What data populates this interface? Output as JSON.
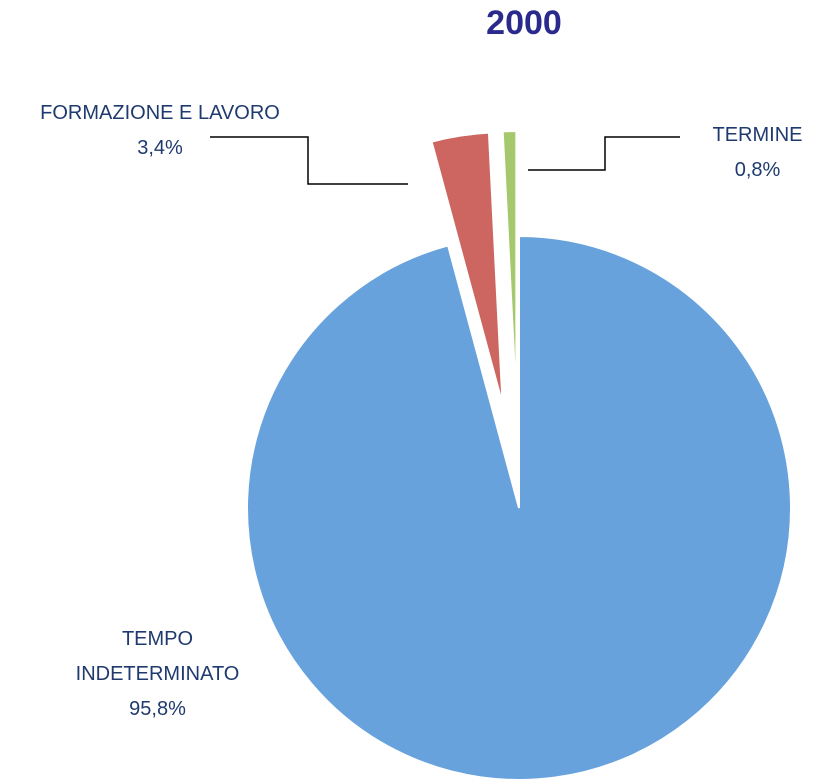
{
  "chart_data": {
    "type": "pie",
    "title": "2000",
    "categories": [
      "TEMPO INDETERMINATO",
      "FORMAZIONE E LAVORO",
      "TERMINE"
    ],
    "values": [
      95.8,
      3.4,
      0.8
    ],
    "value_labels": [
      "95,8%",
      "3,4%",
      "0,8%"
    ],
    "colors": [
      "#67a2dc",
      "#cd6660",
      "#a6c86c"
    ]
  }
}
